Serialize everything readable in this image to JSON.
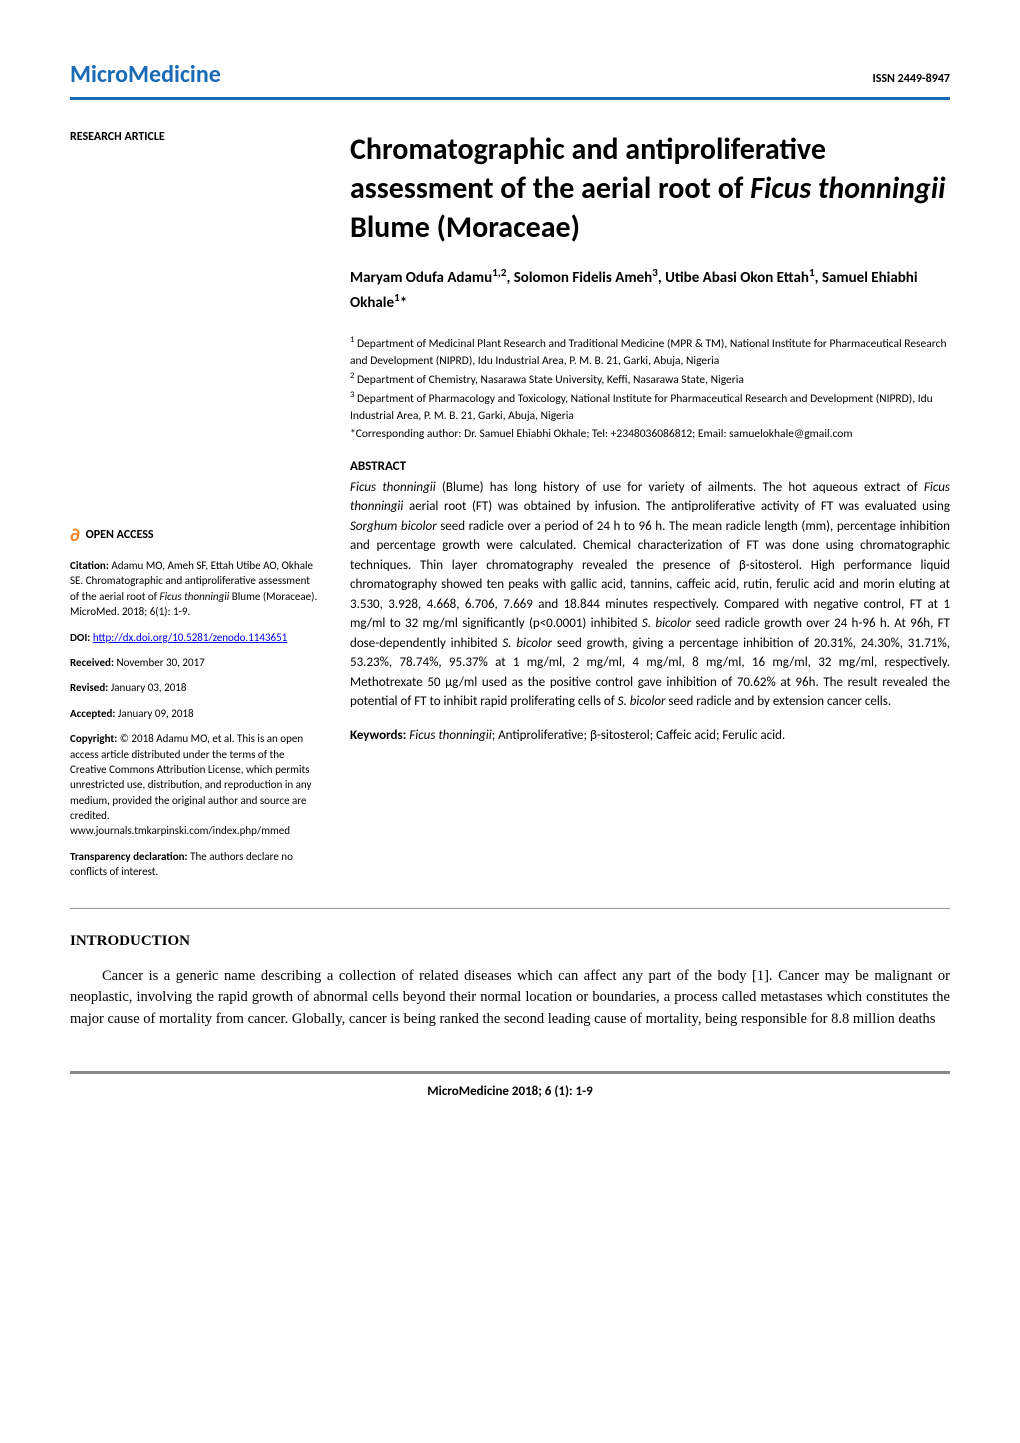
{
  "header": {
    "journal_name": "MicroMedicine",
    "issn": "ISSN 2449-8947",
    "journal_color": "#1a6bb5",
    "divider_color": "#1a6bb5"
  },
  "left_col": {
    "article_type": "RESEARCH ARTICLE",
    "open_access_label": "OPEN ACCESS",
    "open_access_icon_color": "#f58220",
    "citation_label": "Citation:",
    "citation_text": " Adamu MO, Ameh SF, Ettah Utibe AO, Okhale SE. Chromatographic and antiproliferative assessment of the aerial root of Ficus thonningii Blume (Moraceae). MicroMed. 2018; 6(1): 1-9.",
    "doi_label": "DOI:",
    "doi_link": "http://dx.doi.org/10.5281/zenodo.1143651",
    "received_label": "Received:",
    "received_date": " November 30, 2017",
    "revised_label": "Revised:",
    "revised_date": " January 03, 2018",
    "accepted_label": "Accepted:",
    "accepted_date": " January 09, 2018",
    "copyright_label": "Copyright:",
    "copyright_text": " © 2018 Adamu MO, et al. This is an open access article distributed under the terms of the Creative Commons Attribution License, which permits unrestricted use, distribution, and reproduction in any medium, provided the original author and source are credited. www.journals.tmkarpinski.com/index.php/mmed",
    "transparency_label": "Transparency declaration:",
    "transparency_text": " The authors declare no conflicts of interest."
  },
  "article": {
    "title_prefix": "Chromatographic and antiproliferative assessment of the aerial root of ",
    "title_italic": "Ficus thonningii",
    "title_suffix": " Blume (Moraceae)",
    "authors": "Maryam Odufa Adamu1,2, Solomon Fidelis Ameh3, Utibe Abasi Okon Ettah1, Samuel Ehiabhi Okhale1*",
    "affiliation1": "1 Department of Medicinal Plant Research and Traditional Medicine (MPR & TM), National Institute for Pharmaceutical Research and Development (NIPRD), Idu Industrial Area, P. M. B. 21, Garki, Abuja, Nigeria",
    "affiliation2": "2 Department of Chemistry, Nasarawa State University, Keffi, Nasarawa State, Nigeria",
    "affiliation3": "3 Department of Pharmacology and Toxicology, National Institute for Pharmaceutical Research and Development (NIPRD), Idu Industrial Area, P. M. B. 21, Garki, Abuja, Nigeria",
    "corresponding": "*Corresponding author: Dr. Samuel Ehiabhi Okhale; Tel: +2348036086812; Email: samuelokhale@gmail.com",
    "abstract_heading": "ABSTRACT",
    "abstract_text": "Ficus thonningii (Blume) has long history of use for variety of ailments. The hot aqueous extract of Ficus thonningii aerial root (FT) was obtained by infusion. The antiproliferative activity of FT was evaluated using Sorghum bicolor seed radicle over a period of 24 h to 96 h. The mean radicle length (mm), percentage inhibition and percentage growth were calculated. Chemical characterization of FT was done using chromatographic techniques. Thin layer chromatography revealed the presence of β-sitosterol. High performance liquid chromatography showed ten peaks with gallic acid, tannins, caffeic acid, rutin, ferulic acid and morin eluting at 3.530, 3.928, 4.668, 6.706, 7.669 and 18.844 minutes respectively. Compared with negative control, FT at 1 mg/ml to 32 mg/ml significantly (p<0.0001) inhibited S. bicolor seed radicle growth over 24 h-96 h. At 96h, FT dose-dependently inhibited S. bicolor seed growth, giving a percentage inhibition of 20.31%, 24.30%, 31.71%, 53.23%, 78.74%, 95.37% at 1 mg/ml, 2 mg/ml, 4 mg/ml, 8 mg/ml, 16 mg/ml, 32 mg/ml, respectively. Methotrexate 50 µg/ml used as the positive control gave inhibition of 70.62% at 96h. The result revealed the potential of FT to inhibit rapid proliferating cells of S. bicolor seed radicle and by extension cancer cells.",
    "keywords_label": "Keywords:",
    "keywords_text": " Ficus thonningii; Antiproliferative; β-sitosterol; Caffeic acid; Ferulic acid."
  },
  "body": {
    "intro_heading": "INTRODUCTION",
    "intro_text": "Cancer is a generic name describing a collection of related diseases which can affect any part of the body [1]. Cancer may be malignant or neoplastic, involving the rapid growth of abnormal cells beyond their normal location or boundaries, a process called metastases which constitutes the major cause of mortality from cancer. Globally, cancer is being ranked the second leading cause of mortality, being responsible for 8.8 million deaths"
  },
  "footer": {
    "text": "MicroMedicine 2018; 6 (1): 1-9"
  }
}
